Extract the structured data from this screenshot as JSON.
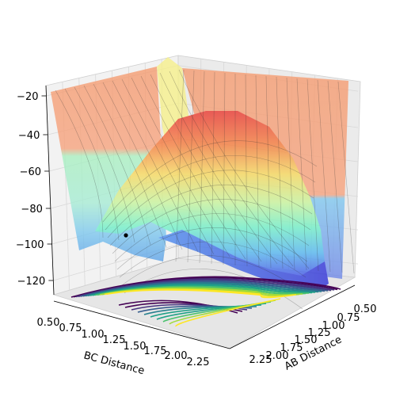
{
  "chart_data": {
    "type": "surface3d",
    "title": "",
    "xlabel": "BC Distance",
    "ylabel": "AB Distance",
    "zlabel": "",
    "x_ticks": [
      "0.50",
      "0.75",
      "1.00",
      "1.25",
      "1.50",
      "1.75",
      "2.00",
      "2.25"
    ],
    "y_ticks": [
      "0.50",
      "0.75",
      "1.00",
      "1.25",
      "1.50",
      "1.75",
      "2.00",
      "2.25"
    ],
    "z_ticks": [
      "−20",
      "−40",
      "−60",
      "−80",
      "−100",
      "−120"
    ],
    "x_range": [
      0.5,
      2.4
    ],
    "y_range": [
      0.5,
      2.4
    ],
    "z_range": [
      -135,
      -20
    ],
    "colormap_surface": "jet",
    "colormap_contours": "viridis",
    "grid": true,
    "marker_point": {
      "x": 0.74,
      "y": 2.3,
      "z": -103
    }
  }
}
